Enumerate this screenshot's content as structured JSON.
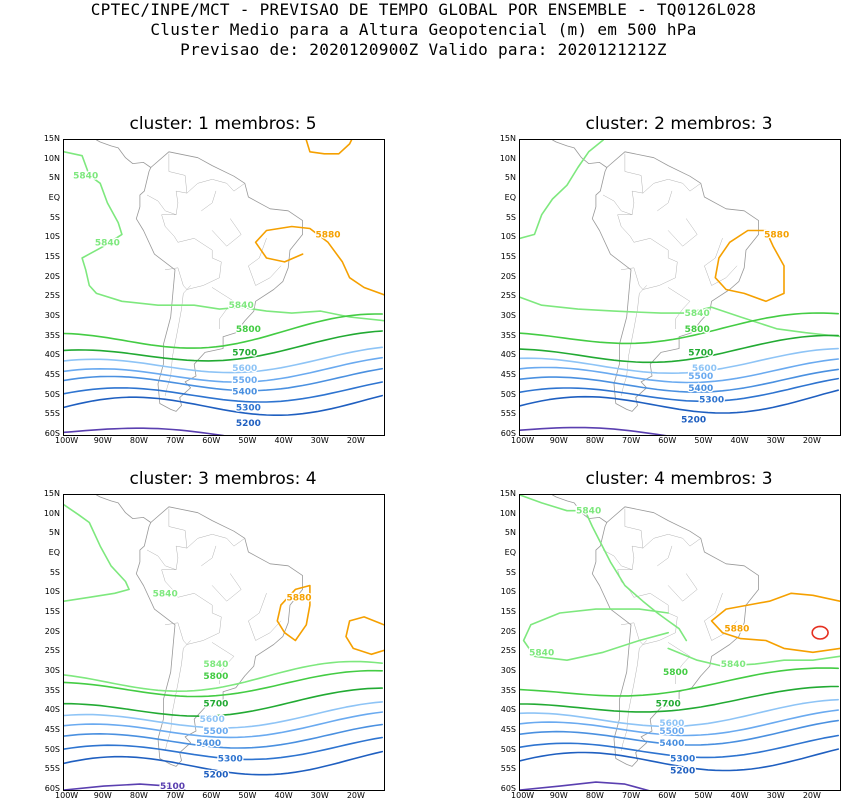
{
  "header": {
    "line1": "CPTEC/INPE/MCT - PREVISAO DE TEMPO GLOBAL POR ENSEMBLE - TQ0126L028",
    "line2": "Cluster Medio para a Altura Geopotencial (m) em 500 hPa",
    "line3": "Previsao de: 2020120900Z   Valido para: 2020121212Z"
  },
  "lat_ticks": [
    "15N",
    "10N",
    "5N",
    "EQ",
    "5S",
    "10S",
    "15S",
    "20S",
    "25S",
    "30S",
    "35S",
    "40S",
    "45S",
    "50S",
    "55S",
    "60S"
  ],
  "lon_ticks": [
    "100W",
    "90W",
    "80W",
    "70W",
    "60W",
    "50W",
    "40W",
    "30W",
    "20W"
  ],
  "colors": {
    "c5100": "#5a3fb0",
    "c5200": "#1f5fc0",
    "c5300": "#2e74d0",
    "c5400": "#4a90e0",
    "c5500": "#6aaaf0",
    "c5600": "#8ec4f6",
    "c5700": "#22aa33",
    "c5800": "#44cc44",
    "c5840": "#7ee87e",
    "c5880": "#f5a000",
    "c5920": "#e53020",
    "land": "#999999"
  },
  "panels": [
    {
      "title": "cluster: 1   membros: 5",
      "labels": [
        {
          "text": "5840",
          "lon": -95,
          "lat": 6,
          "c": "c5840"
        },
        {
          "text": "5840",
          "lon": -89,
          "lat": -11,
          "c": "c5840"
        },
        {
          "text": "5880",
          "lon": -28,
          "lat": -9,
          "c": "c5880"
        },
        {
          "text": "5840",
          "lon": -52,
          "lat": -27,
          "c": "c5840"
        },
        {
          "text": "5800",
          "lon": -50,
          "lat": -33,
          "c": "c5800"
        },
        {
          "text": "5700",
          "lon": -51,
          "lat": -39,
          "c": "c5700"
        },
        {
          "text": "5600",
          "lon": -51,
          "lat": -43,
          "c": "c5600"
        },
        {
          "text": "5500",
          "lon": -51,
          "lat": -46,
          "c": "c5500"
        },
        {
          "text": "5400",
          "lon": -51,
          "lat": -49,
          "c": "c5400"
        },
        {
          "text": "5300",
          "lon": -50,
          "lat": -53,
          "c": "c5300"
        },
        {
          "text": "5200",
          "lon": -50,
          "lat": -57,
          "c": "c5200"
        }
      ]
    },
    {
      "title": "cluster: 2   membros: 3",
      "labels": [
        {
          "text": "5880",
          "lon": -30,
          "lat": -9,
          "c": "c5880"
        },
        {
          "text": "5840",
          "lon": -52,
          "lat": -29,
          "c": "c5840"
        },
        {
          "text": "5800",
          "lon": -52,
          "lat": -33,
          "c": "c5800"
        },
        {
          "text": "5700",
          "lon": -51,
          "lat": -39,
          "c": "c5700"
        },
        {
          "text": "5600",
          "lon": -50,
          "lat": -43,
          "c": "c5600"
        },
        {
          "text": "5500",
          "lon": -51,
          "lat": -45,
          "c": "c5500"
        },
        {
          "text": "5400",
          "lon": -51,
          "lat": -48,
          "c": "c5400"
        },
        {
          "text": "5300",
          "lon": -48,
          "lat": -51,
          "c": "c5300"
        },
        {
          "text": "5200",
          "lon": -53,
          "lat": -56,
          "c": "c5200"
        }
      ]
    },
    {
      "title": "cluster: 3   membros: 4",
      "labels": [
        {
          "text": "5840",
          "lon": -73,
          "lat": -10,
          "c": "c5840"
        },
        {
          "text": "5880",
          "lon": -36,
          "lat": -11,
          "c": "c5880"
        },
        {
          "text": "5840",
          "lon": -59,
          "lat": -28,
          "c": "c5840"
        },
        {
          "text": "5800",
          "lon": -59,
          "lat": -31,
          "c": "c5800"
        },
        {
          "text": "5700",
          "lon": -59,
          "lat": -38,
          "c": "c5700"
        },
        {
          "text": "5600",
          "lon": -60,
          "lat": -42,
          "c": "c5600"
        },
        {
          "text": "5500",
          "lon": -59,
          "lat": -45,
          "c": "c5500"
        },
        {
          "text": "5400",
          "lon": -61,
          "lat": -48,
          "c": "c5400"
        },
        {
          "text": "5300",
          "lon": -55,
          "lat": -52,
          "c": "c5300"
        },
        {
          "text": "5200",
          "lon": -59,
          "lat": -56,
          "c": "c5200"
        },
        {
          "text": "5100",
          "lon": -71,
          "lat": -59,
          "c": "c5100"
        }
      ]
    },
    {
      "title": "cluster: 4   membros: 3",
      "labels": [
        {
          "text": "5840",
          "lon": -82,
          "lat": 11,
          "c": "c5840"
        },
        {
          "text": "5880",
          "lon": -41,
          "lat": -19,
          "c": "c5880"
        },
        {
          "text": "5840",
          "lon": -95,
          "lat": -25,
          "c": "c5840"
        },
        {
          "text": "5840",
          "lon": -42,
          "lat": -28,
          "c": "c5840"
        },
        {
          "text": "5800",
          "lon": -58,
          "lat": -30,
          "c": "c5800"
        },
        {
          "text": "5700",
          "lon": -60,
          "lat": -38,
          "c": "c5700"
        },
        {
          "text": "5600",
          "lon": -59,
          "lat": -43,
          "c": "c5600"
        },
        {
          "text": "5500",
          "lon": -59,
          "lat": -45,
          "c": "c5500"
        },
        {
          "text": "5400",
          "lon": -59,
          "lat": -48,
          "c": "c5400"
        },
        {
          "text": "5300",
          "lon": -56,
          "lat": -52,
          "c": "c5300"
        },
        {
          "text": "5200",
          "lon": -56,
          "lat": -55,
          "c": "c5200"
        }
      ]
    }
  ]
}
